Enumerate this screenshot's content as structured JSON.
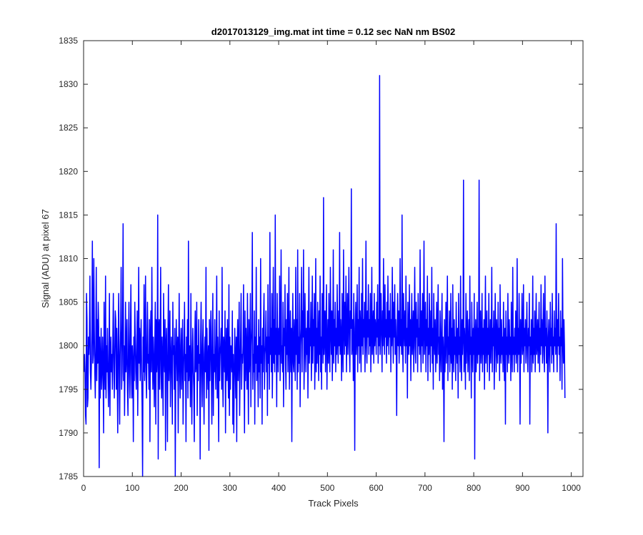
{
  "chart_data": {
    "type": "line",
    "title": "d2017013129_img.mat int time = 0.12 sec  NaN nm BS02",
    "xlabel": "Track Pixels",
    "ylabel": "Signal (ADU) at pixel 67",
    "xlim": [
      0,
      1024
    ],
    "ylim": [
      1785,
      1835
    ],
    "xticks": [
      0,
      100,
      200,
      300,
      400,
      500,
      600,
      700,
      800,
      900,
      1000
    ],
    "yticks": [
      1785,
      1790,
      1795,
      1800,
      1805,
      1810,
      1815,
      1820,
      1825,
      1830,
      1835
    ],
    "grid": false,
    "legend": "none",
    "line_color": "#0000ff",
    "series": [
      {
        "x_start": 1,
        "x_step": 1,
        "values": [
          1797,
          1799,
          1797,
          1792,
          1791,
          1806,
          1803,
          1793,
          1794,
          1801,
          1799,
          1801,
          1808,
          1797,
          1795,
          1798,
          1802,
          1812,
          1798,
          1799,
          1810,
          1802,
          1797,
          1794,
          1800,
          1809,
          1796,
          1803,
          1798,
          1805,
          1802,
          1786,
          1801,
          1794,
          1798,
          1802,
          1795,
          1797,
          1801,
          1797,
          1790,
          1805,
          1798,
          1795,
          1808,
          1794,
          1800,
          1797,
          1802,
          1797,
          1793,
          1798,
          1806,
          1792,
          1799,
          1801,
          1797,
          1799,
          1795,
          1801,
          1806,
          1798,
          1794,
          1799,
          1804,
          1803,
          1795,
          1802,
          1797,
          1790,
          1801,
          1806,
          1797,
          1791,
          1799,
          1802,
          1809,
          1795,
          1797,
          1803,
          1814,
          1796,
          1800,
          1792,
          1798,
          1805,
          1797,
          1799,
          1803,
          1795,
          1792,
          1800,
          1805,
          1797,
          1794,
          1801,
          1807,
          1797,
          1794,
          1800,
          1798,
          1789,
          1801,
          1796,
          1805,
          1801,
          1797,
          1795,
          1800,
          1804,
          1792,
          1799,
          1809,
          1798,
          1802,
          1796,
          1800,
          1803,
          1797,
          1793,
          1785,
          1801,
          1797,
          1807,
          1796,
          1799,
          1808,
          1797,
          1794,
          1800,
          1805,
          1798,
          1799,
          1795,
          1803,
          1789,
          1801,
          1804,
          1797,
          1809,
          1800,
          1795,
          1801,
          1798,
          1793,
          1800,
          1805,
          1791,
          1803,
          1797,
          1799,
          1815,
          1787,
          1802,
          1803,
          1795,
          1800,
          1809,
          1797,
          1794,
          1801,
          1798,
          1792,
          1806,
          1799,
          1797,
          1803,
          1788,
          1800,
          1802,
          1797,
          1789,
          1801,
          1807,
          1796,
          1799,
          1804,
          1793,
          1798,
          1801,
          1797,
          1791,
          1805,
          1799,
          1800,
          1795,
          1802,
          1785,
          1797,
          1803,
          1799,
          1796,
          1801,
          1790,
          1799,
          1806,
          1797,
          1794,
          1800,
          1802,
          1795,
          1799,
          1803,
          1791,
          1797,
          1800,
          1805,
          1796,
          1799,
          1789,
          1801,
          1797,
          1803,
          1794,
          1812,
          1796,
          1798,
          1800,
          1793,
          1806,
          1797,
          1791,
          1799,
          1802,
          1797,
          1795,
          1789,
          1801,
          1804,
          1797,
          1798,
          1805,
          1792,
          1800,
          1796,
          1803,
          1798,
          1799,
          1787,
          1801,
          1805,
          1797,
          1793,
          1800,
          1803,
          1796,
          1791,
          1799,
          1801,
          1797,
          1809,
          1794,
          1802,
          1798,
          1795,
          1800,
          1788,
          1803,
          1796,
          1800,
          1804,
          1797,
          1791,
          1801,
          1806,
          1792,
          1799,
          1797,
          1803,
          1798,
          1795,
          1800,
          1808,
          1794,
          1801,
          1797,
          1789,
          1804,
          1796,
          1799,
          1800,
          1802,
          1795,
          1809,
          1797,
          1793,
          1801,
          1800,
          1797,
          1804,
          1790,
          1799,
          1802,
          1796,
          1803,
          1798,
          1794,
          1807,
          1792,
          1801,
          1795,
          1800,
          1799,
          1797,
          1804,
          1791,
          1799,
          1790,
          1796,
          1802,
          1798,
          1794,
          1801,
          1789,
          1800,
          1803,
          1796,
          1799,
          1805,
          1792,
          1797,
          1801,
          1806,
          1795,
          1799,
          1798,
          1800,
          1807,
          1797,
          1790,
          1804,
          1796,
          1802,
          1799,
          1795,
          1806,
          1798,
          1791,
          1803,
          1797,
          1799,
          1806,
          1793,
          1800,
          1802,
          1813,
          1795,
          1799,
          1797,
          1804,
          1791,
          1801,
          1798,
          1809,
          1796,
          1799,
          1800,
          1793,
          1803,
          1797,
          1801,
          1794,
          1810,
          1798,
          1800,
          1791,
          1802,
          1797,
          1803,
          1806,
          1795,
          1799,
          1800,
          1804,
          1797,
          1801,
          1792,
          1807,
          1798,
          1801,
          1795,
          1813,
          1799,
          1802,
          1797,
          1806,
          1794,
          1800,
          1809,
          1798,
          1803,
          1797,
          1815,
          1799,
          1802,
          1793,
          1806,
          1800,
          1797,
          1802,
          1799,
          1808,
          1796,
          1801,
          1811,
          1798,
          1800,
          1797,
          1805,
          1793,
          1802,
          1800,
          1807,
          1798,
          1795,
          1803,
          1799,
          1806,
          1797,
          1801,
          1809,
          1795,
          1800,
          1804,
          1797,
          1802,
          1789,
          1801,
          1806,
          1798,
          1797,
          1803,
          1800,
          1796,
          1809,
          1799,
          1803,
          1795,
          1811,
          1797,
          1801,
          1798,
          1806,
          1793,
          1800,
          1802,
          1809,
          1797,
          1804,
          1801,
          1811,
          1795,
          1799,
          1806,
          1800,
          1797,
          1802,
          1799,
          1804,
          1794,
          1801,
          1809,
          1798,
          1802,
          1800,
          1805,
          1796,
          1799,
          1808,
          1798,
          1803,
          1800,
          1806,
          1795,
          1799,
          1810,
          1797,
          1802,
          1798,
          1805,
          1801,
          1796,
          1804,
          1799,
          1808,
          1797,
          1801,
          1795,
          1806,
          1803,
          1798,
          1817,
          1799,
          1801,
          1804,
          1797,
          1802,
          1807,
          1795,
          1800,
          1803,
          1798,
          1806,
          1800,
          1797,
          1809,
          1802,
          1799,
          1804,
          1796,
          1801,
          1811,
          1798,
          1803,
          1800,
          1805,
          1797,
          1802,
          1799,
          1807,
          1801,
          1798,
          1804,
          1800,
          1813,
          1799,
          1803,
          1801,
          1796,
          1806,
          1800,
          1797,
          1811,
          1802,
          1799,
          1805,
          1800,
          1808,
          1797,
          1802,
          1806,
          1799,
          1803,
          1809,
          1800,
          1797,
          1804,
          1802,
          1818,
          1799,
          1801,
          1803,
          1796,
          1806,
          1800,
          1788,
          1802,
          1805,
          1799,
          1801,
          1807,
          1797,
          1803,
          1800,
          1809,
          1798,
          1804,
          1802,
          1797,
          1806,
          1800,
          1810,
          1799,
          1803,
          1801,
          1805,
          1797,
          1802,
          1812,
          1800,
          1798,
          1804,
          1801,
          1807,
          1799,
          1803,
          1800,
          1806,
          1797,
          1802,
          1809,
          1799,
          1801,
          1804,
          1798,
          1806,
          1800,
          1803,
          1802,
          1799,
          1805,
          1801,
          1807,
          1798,
          1803,
          1800,
          1831,
          1799,
          1802,
          1806,
          1801,
          1797,
          1804,
          1800,
          1810,
          1802,
          1799,
          1807,
          1801,
          1803,
          1798,
          1805,
          1800,
          1808,
          1802,
          1799,
          1804,
          1801,
          1806,
          1797,
          1803,
          1800,
          1809,
          1802,
          1798,
          1805,
          1801,
          1807,
          1799,
          1803,
          1800,
          1792,
          1802,
          1806,
          1800,
          1804,
          1798,
          1801,
          1810,
          1800,
          1803,
          1799,
          1815,
          1801,
          1797,
          1806,
          1802,
          1800,
          1804,
          1798,
          1808,
          1800,
          1802,
          1794,
          1805,
          1801,
          1799,
          1807,
          1800,
          1803,
          1796,
          1802,
          1806,
          1799,
          1801,
          1804,
          1797,
          1802,
          1809,
          1800,
          1798,
          1805,
          1801,
          1803,
          1797,
          1806,
          1800,
          1802,
          1799,
          1811,
          1801,
          1797,
          1804,
          1800,
          1806,
          1798,
          1802,
          1812,
          1799,
          1801,
          1805,
          1797,
          1803,
          1800,
          1808,
          1796,
          1802,
          1799,
          1806,
          1801,
          1797,
          1804,
          1800,
          1809,
          1798,
          1802,
          1795,
          1806,
          1801,
          1799,
          1803,
          1797,
          1800,
          1805,
          1798,
          1802,
          1807,
          1799,
          1801,
          1796,
          1804,
          1800,
          1797,
          1802,
          1806,
          1795,
          1801,
          1799,
          1789,
          1803,
          1797,
          1800,
          1805,
          1798,
          1802,
          1808,
          1796,
          1801,
          1799,
          1804,
          1797,
          1800,
          1806,
          1798,
          1802,
          1795,
          1807,
          1800,
          1797,
          1803,
          1799,
          1801,
          1796,
          1805,
          1800,
          1798,
          1802,
          1794,
          1806,
          1799,
          1801,
          1797,
          1808,
          1800,
          1796,
          1803,
          1799,
          1801,
          1819,
          1797,
          1802,
          1800,
          1795,
          1806,
          1798,
          1801,
          1804,
          1797,
          1800,
          1803,
          1796,
          1808,
          1799,
          1801,
          1794,
          1805,
          1800,
          1797,
          1802,
          1799,
          1806,
          1787,
          1801,
          1803,
          1797,
          1800,
          1805,
          1798,
          1802,
          1799,
          1819,
          1796,
          1801,
          1804,
          1798,
          1800,
          1806,
          1797,
          1802,
          1799,
          1803,
          1795,
          1801,
          1808,
          1798,
          1800,
          1804,
          1797,
          1802,
          1799,
          1806,
          1796,
          1800,
          1803,
          1798,
          1801,
          1809,
          1797,
          1802,
          1800,
          1804,
          1795,
          1799,
          1806,
          1801,
          1797,
          1803,
          1800,
          1798,
          1805,
          1799,
          1802,
          1796,
          1807,
          1800,
          1798,
          1803,
          1799,
          1801,
          1797,
          1805,
          1800,
          1796,
          1802,
          1791,
          1804,
          1799,
          1801,
          1797,
          1806,
          1800,
          1798,
          1803,
          1799,
          1801,
          1796,
          1805,
          1800,
          1797,
          1809,
          1799,
          1801,
          1797,
          1802,
          1799,
          1804,
          1798,
          1800,
          1810,
          1797,
          1802,
          1799,
          1806,
          1800,
          1791,
          1803,
          1798,
          1801,
          1806,
          1799,
          1800,
          1807,
          1797,
          1802,
          1800,
          1803,
          1798,
          1801,
          1805,
          1799,
          1797,
          1802,
          1800,
          1806,
          1791,
          1801,
          1799,
          1803,
          1797,
          1800,
          1808,
          1798,
          1802,
          1799,
          1804,
          1797,
          1801,
          1806,
          1799,
          1800,
          1803,
          1798,
          1801,
          1805,
          1797,
          1802,
          1799,
          1807,
          1800,
          1803,
          1798,
          1801,
          1806,
          1799,
          1797,
          1808,
          1800,
          1802,
          1798,
          1804,
          1800,
          1790,
          1801,
          1803,
          1799,
          1797,
          1805,
          1800,
          1802,
          1798,
          1806,
          1799,
          1801,
          1797,
          1804,
          1800,
          1802,
          1799,
          1814,
          1801,
          1797,
          1803,
          1800,
          1806,
          1799,
          1801,
          1796,
          1804,
          1800,
          1802,
          1795,
          1810,
          1801,
          1798,
          1803,
          1800,
          1794
        ]
      }
    ]
  }
}
